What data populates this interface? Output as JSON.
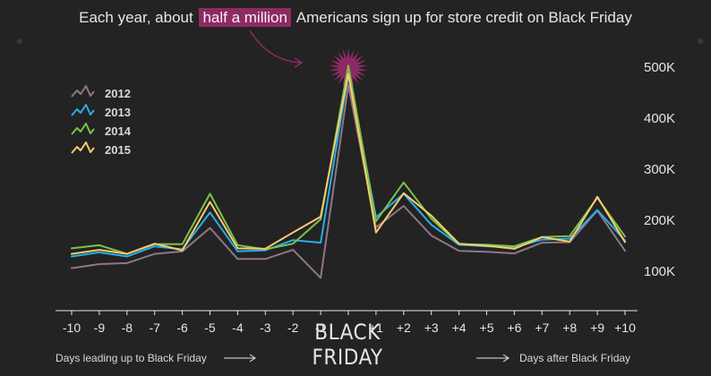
{
  "title": {
    "before": "Each year, about",
    "highlight": "half a million",
    "after": "Americans sign up for store credit on Black Friday"
  },
  "footer": {
    "left": "Days leading up to Black Friday",
    "right": "Days after Black Friday",
    "center_line1": "BLACK",
    "center_line2": "FRIDAY"
  },
  "colors": {
    "background": "#232323",
    "highlight": "#8e2a63",
    "2012": "#8f7688",
    "2013": "#27aee8",
    "2014": "#7cc24a",
    "2015": "#f9cb6e"
  },
  "chart_data": {
    "type": "line",
    "x": [
      -10,
      -9,
      -8,
      -7,
      -6,
      -5,
      -4,
      -3,
      -2,
      -1,
      0,
      1,
      2,
      3,
      4,
      5,
      6,
      7,
      8,
      9,
      10
    ],
    "x_tick_labels": [
      "-10",
      "-9",
      "-8",
      "-7",
      "-6",
      "-5",
      "-4",
      "-3",
      "-2",
      "-1",
      "",
      "+1",
      "+2",
      "+3",
      "+4",
      "+5",
      "+6",
      "+7",
      "+8",
      "+9",
      "+10"
    ],
    "y_tick_labels": [
      "100K",
      "200K",
      "300K",
      "400K",
      "500K"
    ],
    "y_ticks": [
      100000,
      200000,
      300000,
      400000,
      500000
    ],
    "ylim": [
      0,
      530000
    ],
    "grid": false,
    "legend_position": "top-left",
    "series": [
      {
        "name": "2012",
        "values": [
          106000,
          114000,
          116000,
          134000,
          139000,
          185000,
          124000,
          124000,
          142000,
          87000,
          465000,
          186000,
          228000,
          170000,
          140000,
          138000,
          135000,
          156000,
          157000,
          219000,
          140000
        ]
      },
      {
        "name": "2013",
        "values": [
          129000,
          137000,
          129000,
          149000,
          143000,
          215000,
          139000,
          141000,
          161000,
          156000,
          487000,
          206000,
          252000,
          191000,
          152000,
          149000,
          147000,
          162000,
          164000,
          220000,
          160000
        ]
      },
      {
        "name": "2014",
        "values": [
          145000,
          151000,
          134000,
          153000,
          153000,
          252000,
          151000,
          143000,
          154000,
          202000,
          503000,
          198000,
          274000,
          203000,
          153000,
          152000,
          149000,
          167000,
          169000,
          244000,
          168000
        ]
      },
      {
        "name": "2015",
        "values": [
          134000,
          142000,
          134000,
          154000,
          141000,
          236000,
          145000,
          144000,
          176000,
          207000,
          487000,
          176000,
          253000,
          209000,
          154000,
          150000,
          144000,
          167000,
          158000,
          246000,
          157000
        ]
      }
    ]
  }
}
